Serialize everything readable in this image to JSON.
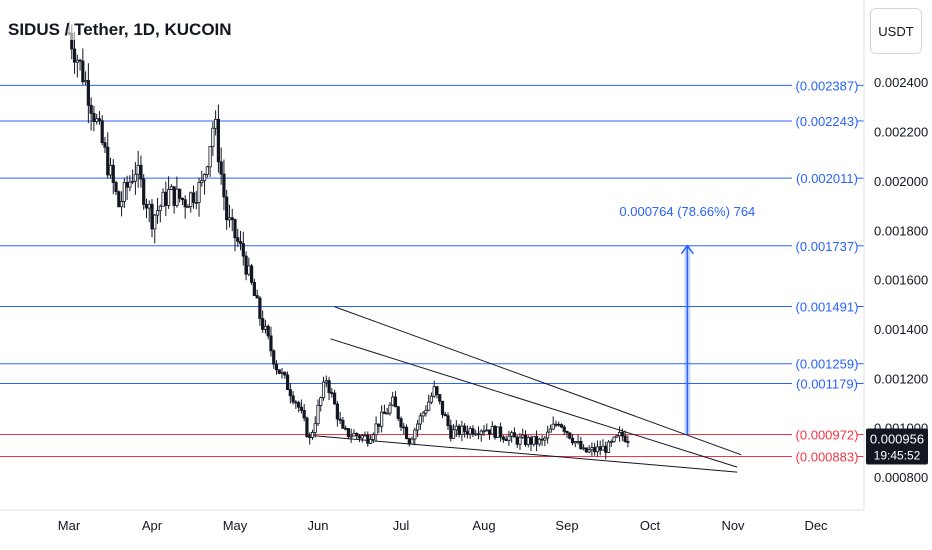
{
  "header": {
    "title": "SIDUS / Tether, 1D, KUCOIN"
  },
  "toolbar": {
    "currency_label": "USDT"
  },
  "price_tag": {
    "price": "0.000956",
    "countdown": "19:45:52"
  },
  "measure_label": "0.000764 (78.66%) 764",
  "colors": {
    "blue": "#2962ff",
    "red": "#f23645",
    "candle": "#131722",
    "tag": "#131722"
  },
  "chart_data": {
    "type": "candlestick",
    "title": "SIDUS / Tether, 1D, KUCOIN",
    "x_axis": {
      "labels": [
        "Mar",
        "Apr",
        "May",
        "Jun",
        "Jul",
        "Aug",
        "Sep",
        "Oct",
        "Nov",
        "Dec"
      ]
    },
    "y_axis": {
      "ticks": [
        "0.000800",
        "0.001000",
        "0.001200",
        "0.001400",
        "0.001600",
        "0.001800",
        "0.002000",
        "0.002200",
        "0.002400"
      ],
      "tick_values": [
        0.0008,
        0.001,
        0.0012,
        0.0014,
        0.0016,
        0.0018,
        0.002,
        0.0022,
        0.0024
      ]
    },
    "horizontal_levels": [
      {
        "label": "(0.002387)",
        "value": 0.002387,
        "color": "blue"
      },
      {
        "label": "(0.002243)",
        "value": 0.002243,
        "color": "blue"
      },
      {
        "label": "(0.002011)",
        "value": 0.002011,
        "color": "blue"
      },
      {
        "label": "(0.001737)",
        "value": 0.001737,
        "color": "blue"
      },
      {
        "label": "(0.001491)",
        "value": 0.001491,
        "color": "blue"
      },
      {
        "label": "(0.001259)",
        "value": 0.001259,
        "color": "blue"
      },
      {
        "label": "(0.001179)",
        "value": 0.001179,
        "color": "blue"
      },
      {
        "label": "(0.000972)",
        "value": 0.000972,
        "color": "red"
      },
      {
        "label": "(0.000883)",
        "value": 0.000883,
        "color": "red"
      }
    ],
    "price_path": [
      {
        "month": 0.0,
        "price": 0.0026
      },
      {
        "month": 0.2,
        "price": 0.0024
      },
      {
        "month": 0.4,
        "price": 0.00215
      },
      {
        "month": 0.6,
        "price": 0.0019
      },
      {
        "month": 0.8,
        "price": 0.00205
      },
      {
        "month": 1.0,
        "price": 0.00185
      },
      {
        "month": 1.2,
        "price": 0.00195
      },
      {
        "month": 1.4,
        "price": 0.00192
      },
      {
        "month": 1.6,
        "price": 0.00198
      },
      {
        "month": 1.75,
        "price": 0.00225
      },
      {
        "month": 1.9,
        "price": 0.00185
      },
      {
        "month": 2.1,
        "price": 0.0017
      },
      {
        "month": 2.3,
        "price": 0.00145
      },
      {
        "month": 2.5,
        "price": 0.00125
      },
      {
        "month": 2.75,
        "price": 0.0011
      },
      {
        "month": 2.9,
        "price": 0.00095
      },
      {
        "month": 3.1,
        "price": 0.0012
      },
      {
        "month": 3.3,
        "price": 0.00098
      },
      {
        "month": 3.6,
        "price": 0.00096
      },
      {
        "month": 3.9,
        "price": 0.0011
      },
      {
        "month": 4.1,
        "price": 0.00095
      },
      {
        "month": 4.4,
        "price": 0.00115
      },
      {
        "month": 4.6,
        "price": 0.00098
      },
      {
        "month": 5.0,
        "price": 0.001
      },
      {
        "month": 5.4,
        "price": 0.00095
      },
      {
        "month": 5.7,
        "price": 0.00094
      },
      {
        "month": 5.9,
        "price": 0.00103
      },
      {
        "month": 6.2,
        "price": 0.0009
      },
      {
        "month": 6.5,
        "price": 0.00092
      },
      {
        "month": 6.65,
        "price": 0.00097
      },
      {
        "month": 6.75,
        "price": 0.000956
      }
    ],
    "trendlines": [
      {
        "name": "wedge-upper-outer",
        "points": [
          [
            3.2,
            0.00149
          ],
          [
            8.1,
            0.00089
          ]
        ]
      },
      {
        "name": "wedge-upper-inner",
        "points": [
          [
            3.15,
            0.00136
          ],
          [
            8.05,
            0.00084
          ]
        ]
      },
      {
        "name": "wedge-lower",
        "points": [
          [
            2.85,
            0.00097
          ],
          [
            8.05,
            0.00082
          ]
        ]
      }
    ],
    "measure_arrow": {
      "from": [
        7.45,
        0.000972
      ],
      "to": [
        7.45,
        0.001737
      ]
    }
  }
}
